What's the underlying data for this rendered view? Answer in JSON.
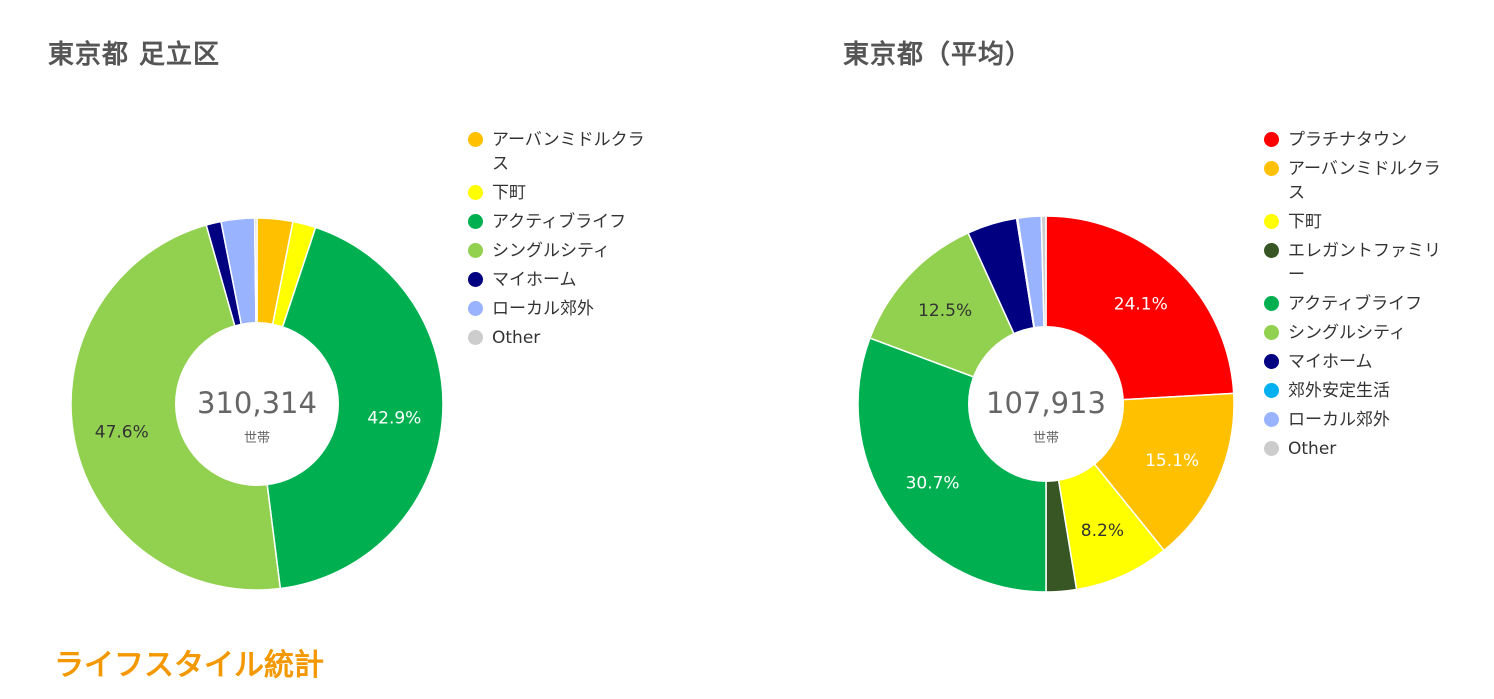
{
  "section_title": "ライフスタイル統計",
  "chart_data": [
    {
      "type": "pie",
      "title": "東京都 足立区",
      "center_value": "310,314",
      "center_unit": "世帯",
      "legend": [
        {
          "label": "アーバンミドルクラス",
          "color": "#ffc000"
        },
        {
          "label": "下町",
          "color": "#ffff00"
        },
        {
          "label": "アクティブライフ",
          "color": "#00b050"
        },
        {
          "label": "シングルシティ",
          "color": "#92d050"
        },
        {
          "label": "マイホーム",
          "color": "#000080"
        },
        {
          "label": "ローカル郊外",
          "color": "#99b3ff"
        },
        {
          "label": "Other",
          "color": "#cccccc"
        }
      ],
      "slices": [
        {
          "label": "アーバンミドルクラス",
          "value": 3.1,
          "color": "#ffc000"
        },
        {
          "label": "下町",
          "value": 2.0,
          "color": "#ffff00"
        },
        {
          "label": "アクティブライフ",
          "value": 42.9,
          "color": "#00b050",
          "data_label": "42.9%"
        },
        {
          "label": "シングルシティ",
          "value": 47.6,
          "color": "#92d050",
          "data_label": "47.6%"
        },
        {
          "label": "マイホーム",
          "value": 1.3,
          "color": "#000080"
        },
        {
          "label": "ローカル郊外",
          "value": 2.9,
          "color": "#99b3ff"
        },
        {
          "label": "Other",
          "value": 0.2,
          "color": "#cccccc"
        }
      ]
    },
    {
      "type": "pie",
      "title": "東京都（平均）",
      "center_value": "107,913",
      "center_unit": "世帯",
      "legend": [
        {
          "label": "プラチナタウン",
          "color": "#ff0000"
        },
        {
          "label": "アーバンミドルクラス",
          "color": "#ffc000"
        },
        {
          "label": "下町",
          "color": "#ffff00"
        },
        {
          "label": "エレガントファミリー",
          "color": "#375623"
        },
        {
          "label": "アクティブライフ",
          "color": "#00b050"
        },
        {
          "label": "シングルシティ",
          "color": "#92d050"
        },
        {
          "label": "マイホーム",
          "color": "#000080"
        },
        {
          "label": "郊外安定生活",
          "color": "#00b0f0"
        },
        {
          "label": "ローカル郊外",
          "color": "#99b3ff"
        },
        {
          "label": "Other",
          "color": "#cccccc"
        }
      ],
      "slices": [
        {
          "label": "プラチナタウン",
          "value": 24.1,
          "color": "#ff0000",
          "data_label": "24.1%"
        },
        {
          "label": "アーバンミドルクラス",
          "value": 15.1,
          "color": "#ffc000",
          "data_label": "15.1%"
        },
        {
          "label": "下町",
          "value": 8.2,
          "color": "#ffff00",
          "data_label": "8.2%"
        },
        {
          "label": "エレガントファミリー",
          "value": 2.6,
          "color": "#375623"
        },
        {
          "label": "アクティブライフ",
          "value": 30.7,
          "color": "#00b050",
          "data_label": "30.7%"
        },
        {
          "label": "シングルシティ",
          "value": 12.5,
          "color": "#92d050",
          "data_label": "12.5%"
        },
        {
          "label": "マイホーム",
          "value": 4.3,
          "color": "#000080"
        },
        {
          "label": "郊外安定生活",
          "value": 0.1,
          "color": "#00b0f0"
        },
        {
          "label": "ローカル郊外",
          "value": 2.0,
          "color": "#99b3ff"
        },
        {
          "label": "Other",
          "value": 0.4,
          "color": "#cccccc"
        }
      ]
    }
  ]
}
